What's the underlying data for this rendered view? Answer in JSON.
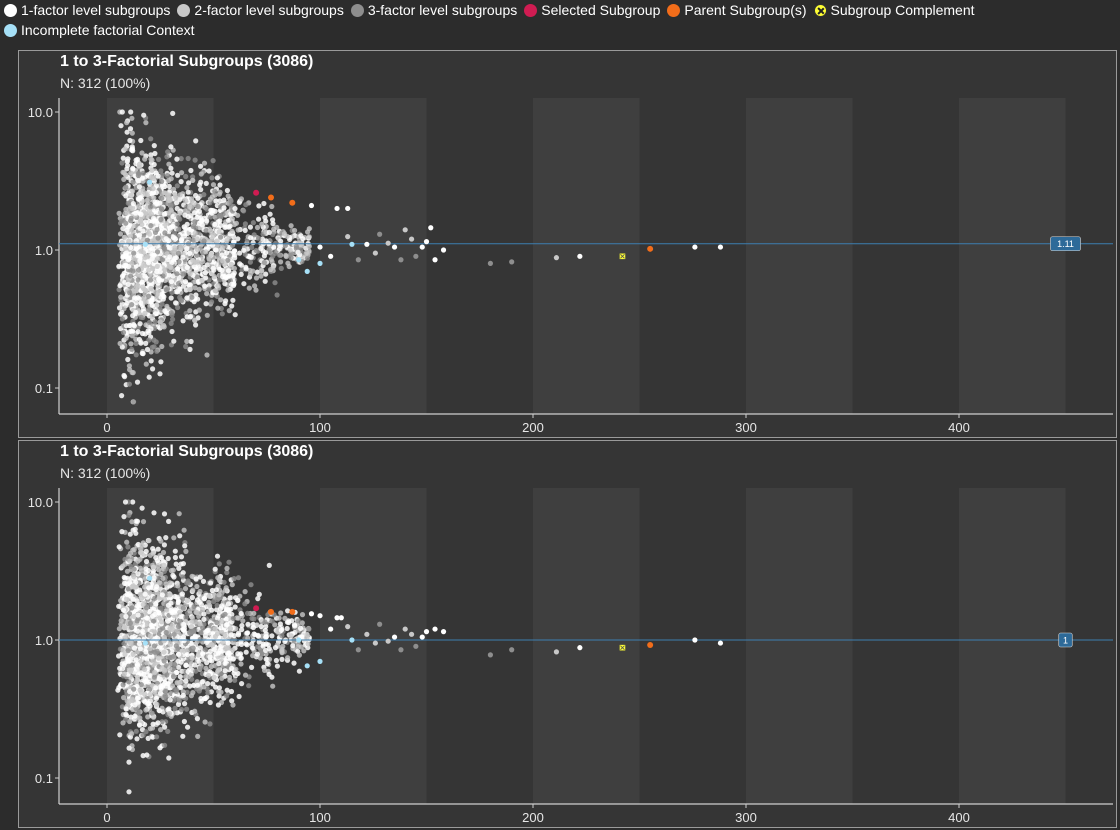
{
  "legend": {
    "items": [
      {
        "label": "1-factor level subgroups",
        "color": "#ffffff",
        "kind": "dot"
      },
      {
        "label": "2-factor level subgroups",
        "color": "#c8c8c8",
        "kind": "dot"
      },
      {
        "label": "3-factor level subgroups",
        "color": "#8e8e8e",
        "kind": "dot"
      },
      {
        "label": "Selected Subgroup",
        "color": "#d01c52",
        "kind": "dot"
      },
      {
        "label": "Parent Subgroup(s)",
        "color": "#f26d1a",
        "kind": "dot"
      },
      {
        "label": "Subgroup Complement",
        "color": "#ffff33",
        "kind": "complement"
      },
      {
        "label": "Incomplete factorial Context",
        "color": "#a6e0f7",
        "kind": "dot"
      }
    ]
  },
  "chart_data": [
    {
      "type": "scatter",
      "title": "1 to 3-Factorial Subgroups (3086)",
      "subtitle": "N: 312 (100%)",
      "y_scale": "log",
      "ylim": [
        0.08,
        12
      ],
      "xlim": [
        -22,
        470
      ],
      "x_ticks": [
        0,
        100,
        200,
        300,
        400
      ],
      "y_ticks": [
        0.1,
        1.0,
        10.0
      ],
      "y_tick_labels": [
        "0.1",
        "1.0",
        "10.0"
      ],
      "bands": [
        [
          0,
          50
        ],
        [
          100,
          150
        ],
        [
          200,
          250
        ],
        [
          300,
          350
        ],
        [
          400,
          450
        ]
      ],
      "reference_line": {
        "y": 1.11,
        "label": "1.11",
        "label_x": 450
      },
      "special_points": [
        {
          "kind": "selected",
          "x": 70,
          "y": 2.6
        },
        {
          "kind": "parent",
          "x": 77,
          "y": 2.4
        },
        {
          "kind": "parent",
          "x": 87,
          "y": 2.2
        },
        {
          "kind": "parent",
          "x": 255,
          "y": 1.02
        },
        {
          "kind": "complement",
          "x": 242,
          "y": 0.9
        },
        {
          "kind": "incomplete",
          "x": 20,
          "y": 3.1
        },
        {
          "kind": "incomplete",
          "x": 18,
          "y": 1.1
        },
        {
          "kind": "incomplete",
          "x": 90,
          "y": 0.85
        },
        {
          "kind": "incomplete",
          "x": 94,
          "y": 0.7
        },
        {
          "kind": "incomplete",
          "x": 100,
          "y": 0.8
        },
        {
          "kind": "incomplete",
          "x": 115,
          "y": 1.1
        }
      ],
      "tail_points": [
        {
          "x": 100,
          "y": 1.05,
          "level": 1
        },
        {
          "x": 105,
          "y": 0.9,
          "level": 1
        },
        {
          "x": 108,
          "y": 2.0,
          "level": 1
        },
        {
          "x": 113,
          "y": 1.25,
          "level": 2
        },
        {
          "x": 118,
          "y": 0.85,
          "level": 3
        },
        {
          "x": 122,
          "y": 1.1,
          "level": 1
        },
        {
          "x": 126,
          "y": 0.95,
          "level": 2
        },
        {
          "x": 128,
          "y": 1.3,
          "level": 3
        },
        {
          "x": 132,
          "y": 1.12,
          "level": 2
        },
        {
          "x": 135,
          "y": 1.05,
          "level": 1
        },
        {
          "x": 138,
          "y": 0.85,
          "level": 3
        },
        {
          "x": 140,
          "y": 1.4,
          "level": 2
        },
        {
          "x": 143,
          "y": 1.2,
          "level": 2
        },
        {
          "x": 145,
          "y": 0.9,
          "level": 3
        },
        {
          "x": 148,
          "y": 1.05,
          "level": 1
        },
        {
          "x": 150,
          "y": 1.15,
          "level": 1
        },
        {
          "x": 152,
          "y": 1.45,
          "level": 1
        },
        {
          "x": 154,
          "y": 0.85,
          "level": 1
        },
        {
          "x": 158,
          "y": 1.0,
          "level": 1
        },
        {
          "x": 180,
          "y": 0.8,
          "level": 3
        },
        {
          "x": 190,
          "y": 0.82,
          "level": 3
        },
        {
          "x": 211,
          "y": 0.88,
          "level": 2
        },
        {
          "x": 222,
          "y": 0.9,
          "level": 1
        },
        {
          "x": 276,
          "y": 1.05,
          "level": 1
        },
        {
          "x": 288,
          "y": 1.05,
          "level": 1
        },
        {
          "x": 113,
          "y": 2.0,
          "level": 1
        },
        {
          "x": 96,
          "y": 2.1,
          "level": 1
        }
      ],
      "cloud_levels": [
        1,
        2,
        3
      ]
    },
    {
      "type": "scatter",
      "title": "1 to 3-Factorial Subgroups (3086)",
      "subtitle": "N: 312 (100%)",
      "y_scale": "log",
      "ylim": [
        0.08,
        12
      ],
      "xlim": [
        -22,
        470
      ],
      "x_ticks": [
        0,
        100,
        200,
        300,
        400
      ],
      "y_ticks": [
        0.1,
        1.0,
        10.0
      ],
      "y_tick_labels": [
        "0.1",
        "1.0",
        "10.0"
      ],
      "bands": [
        [
          0,
          50
        ],
        [
          100,
          150
        ],
        [
          200,
          250
        ],
        [
          300,
          350
        ],
        [
          400,
          450
        ]
      ],
      "reference_line": {
        "y": 1.0,
        "label": "1",
        "label_x": 450
      },
      "special_points": [
        {
          "kind": "selected",
          "x": 70,
          "y": 1.7
        },
        {
          "kind": "parent",
          "x": 77,
          "y": 1.6
        },
        {
          "kind": "parent",
          "x": 87,
          "y": 1.6
        },
        {
          "kind": "parent",
          "x": 255,
          "y": 0.92
        },
        {
          "kind": "complement",
          "x": 242,
          "y": 0.88
        },
        {
          "kind": "incomplete",
          "x": 20,
          "y": 2.8
        },
        {
          "kind": "incomplete",
          "x": 18,
          "y": 0.95
        },
        {
          "kind": "incomplete",
          "x": 90,
          "y": 1.0
        },
        {
          "kind": "incomplete",
          "x": 94,
          "y": 0.65
        },
        {
          "kind": "incomplete",
          "x": 100,
          "y": 0.7
        },
        {
          "kind": "incomplete",
          "x": 115,
          "y": 1.0
        }
      ],
      "tail_points": [
        {
          "x": 100,
          "y": 1.5,
          "level": 1
        },
        {
          "x": 105,
          "y": 1.2,
          "level": 1
        },
        {
          "x": 108,
          "y": 1.45,
          "level": 1
        },
        {
          "x": 113,
          "y": 1.25,
          "level": 2
        },
        {
          "x": 118,
          "y": 0.85,
          "level": 3
        },
        {
          "x": 122,
          "y": 1.1,
          "level": 2
        },
        {
          "x": 126,
          "y": 0.95,
          "level": 2
        },
        {
          "x": 128,
          "y": 1.3,
          "level": 3
        },
        {
          "x": 132,
          "y": 0.98,
          "level": 2
        },
        {
          "x": 135,
          "y": 1.05,
          "level": 1
        },
        {
          "x": 138,
          "y": 0.85,
          "level": 3
        },
        {
          "x": 140,
          "y": 1.2,
          "level": 2
        },
        {
          "x": 143,
          "y": 1.1,
          "level": 2
        },
        {
          "x": 145,
          "y": 0.9,
          "level": 3
        },
        {
          "x": 148,
          "y": 1.05,
          "level": 1
        },
        {
          "x": 150,
          "y": 1.15,
          "level": 1
        },
        {
          "x": 154,
          "y": 1.2,
          "level": 1
        },
        {
          "x": 158,
          "y": 1.15,
          "level": 1
        },
        {
          "x": 180,
          "y": 0.78,
          "level": 3
        },
        {
          "x": 190,
          "y": 0.85,
          "level": 3
        },
        {
          "x": 211,
          "y": 0.82,
          "level": 2
        },
        {
          "x": 222,
          "y": 0.88,
          "level": 1
        },
        {
          "x": 276,
          "y": 1.0,
          "level": 1
        },
        {
          "x": 288,
          "y": 0.95,
          "level": 1
        },
        {
          "x": 110,
          "y": 1.45,
          "level": 1
        },
        {
          "x": 96,
          "y": 1.55,
          "level": 1
        }
      ],
      "cloud_levels": [
        1,
        2,
        3
      ]
    }
  ]
}
